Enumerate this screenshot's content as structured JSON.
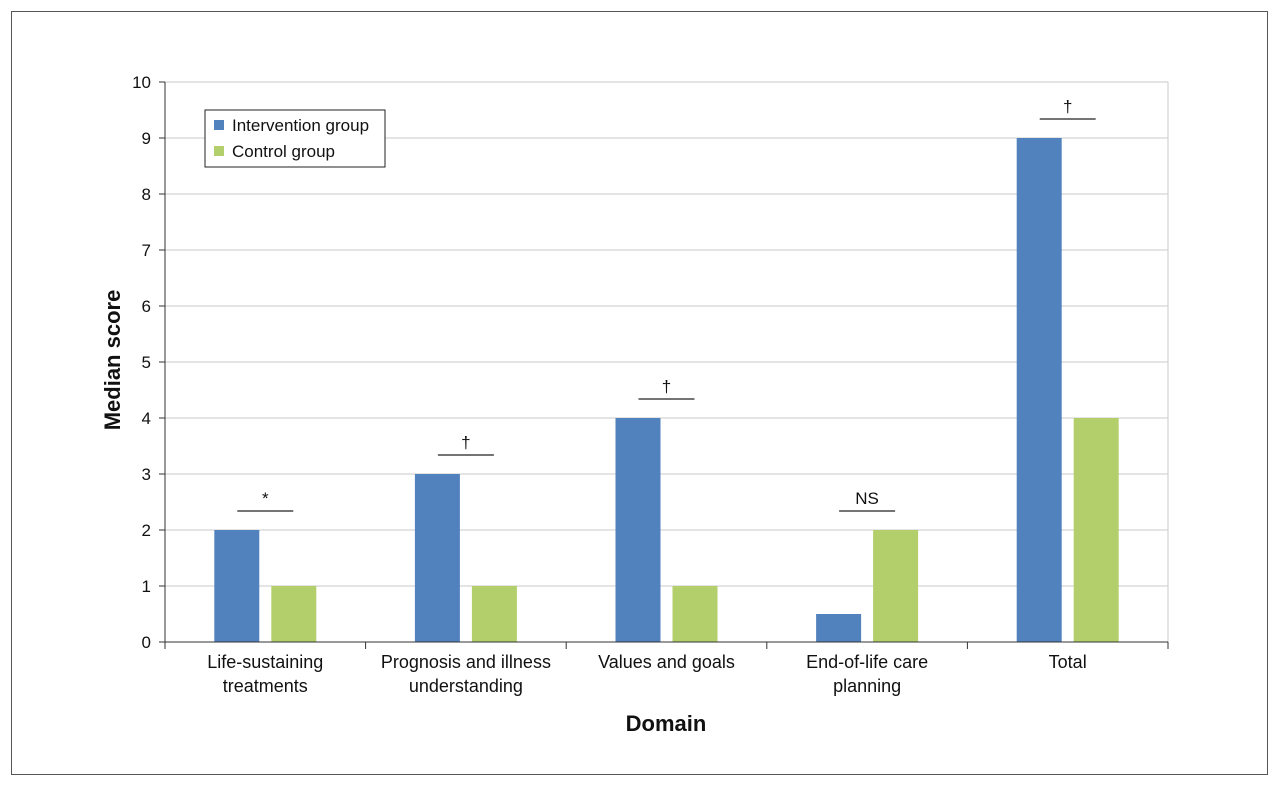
{
  "colors": {
    "intervention": "#5282BE",
    "control": "#B3CF6B",
    "grid": "#C8C8C8",
    "axis": "#333333"
  },
  "chart_data": {
    "type": "bar",
    "title": "",
    "xlabel": "Domain",
    "ylabel": "Median score",
    "ylim": [
      0,
      10
    ],
    "yticks": [
      0,
      1,
      2,
      3,
      4,
      5,
      6,
      7,
      8,
      9,
      10
    ],
    "grid": true,
    "legend_position": "top-left",
    "categories": [
      [
        "Life-sustaining",
        "treatments"
      ],
      [
        "Prognosis and illness",
        "understanding"
      ],
      [
        "Values and goals"
      ],
      [
        "End-of-life care",
        "planning"
      ],
      [
        "Total"
      ]
    ],
    "series": [
      {
        "name": "Intervention group",
        "values": [
          2,
          3,
          4,
          0.5,
          9
        ]
      },
      {
        "name": "Control group",
        "values": [
          1,
          1,
          1,
          2,
          4
        ]
      }
    ],
    "significance": [
      "*",
      "†",
      "†",
      "NS",
      "†"
    ]
  }
}
